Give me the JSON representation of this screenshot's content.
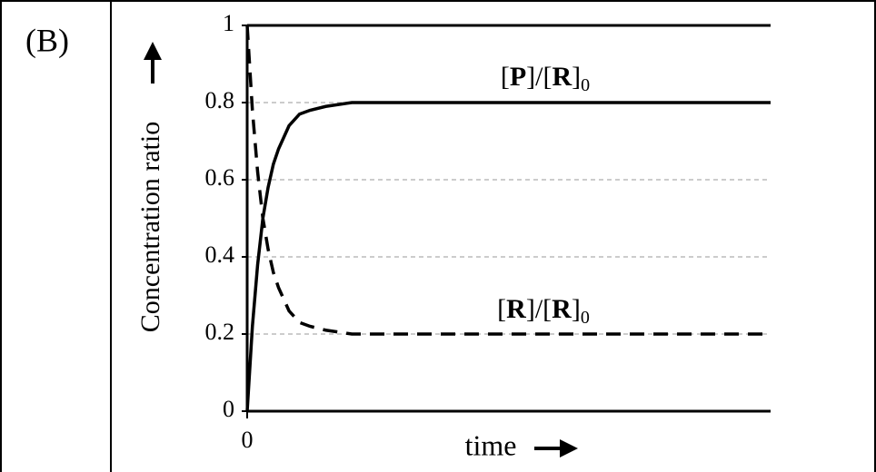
{
  "panel_label": "(B)",
  "chart_data": {
    "type": "line",
    "ylabel": "Concentration ratio",
    "xlabel": "time",
    "x": [
      0,
      0.1,
      0.2,
      0.3,
      0.4,
      0.5,
      0.6,
      0.8,
      1.0,
      1.2,
      1.5,
      2,
      3,
      5,
      10
    ],
    "series": [
      {
        "name": "[P]/[R]0",
        "color": "#000000",
        "style": "solid",
        "values": [
          0,
          0.22,
          0.38,
          0.5,
          0.58,
          0.64,
          0.68,
          0.74,
          0.77,
          0.78,
          0.79,
          0.8,
          0.8,
          0.8,
          0.8
        ]
      },
      {
        "name": "[R]/[R]0",
        "color": "#000000",
        "style": "dashed",
        "values": [
          1,
          0.78,
          0.62,
          0.5,
          0.42,
          0.36,
          0.32,
          0.26,
          0.23,
          0.22,
          0.21,
          0.2,
          0.2,
          0.2,
          0.2
        ]
      }
    ],
    "xlim": [
      0,
      10
    ],
    "xticks": [
      0
    ],
    "ylim": [
      0,
      1
    ],
    "yticks": [
      0,
      {
        "value": 0.2,
        "label": "0.2"
      },
      {
        "value": 0.4,
        "label": "0.4"
      },
      {
        "value": 0.6,
        "label": "0.6"
      },
      {
        "value": 0.8,
        "label": "0.8"
      },
      1
    ],
    "grid": true
  }
}
